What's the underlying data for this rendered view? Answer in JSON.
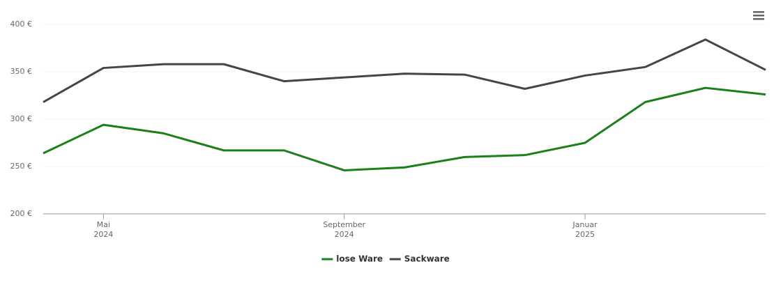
{
  "chart_data": {
    "type": "line",
    "x": [
      "2024-04",
      "2024-05",
      "2024-06",
      "2024-07",
      "2024-08",
      "2024-09",
      "2024-10",
      "2024-11",
      "2024-12",
      "2025-01",
      "2025-02",
      "2025-03",
      "2025-04"
    ],
    "series": [
      {
        "name": "lose Ware",
        "color": "#1a801a",
        "values": [
          264,
          294,
          285,
          267,
          267,
          246,
          249,
          260,
          262,
          275,
          318,
          333,
          326
        ]
      },
      {
        "name": "Sackware",
        "color": "#454545",
        "values": [
          318,
          354,
          358,
          358,
          340,
          344,
          348,
          347,
          332,
          346,
          355,
          384,
          352
        ]
      }
    ],
    "xlim": [
      "2024-04",
      "2025-04"
    ],
    "xticks": [
      {
        "value": "2024-05",
        "label": [
          "Mai",
          "2024"
        ]
      },
      {
        "value": "2024-09",
        "label": [
          "September",
          "2024"
        ]
      },
      {
        "value": "2025-01",
        "label": [
          "Januar",
          "2025"
        ]
      }
    ],
    "ylim": [
      200,
      400
    ],
    "yticks": [
      {
        "value": 200,
        "label": "200 €"
      },
      {
        "value": 250,
        "label": "250 €"
      },
      {
        "value": 300,
        "label": "300 €"
      },
      {
        "value": 350,
        "label": "350 €"
      },
      {
        "value": 400,
        "label": "400 €"
      }
    ],
    "grid": true,
    "legend": "bottom"
  }
}
